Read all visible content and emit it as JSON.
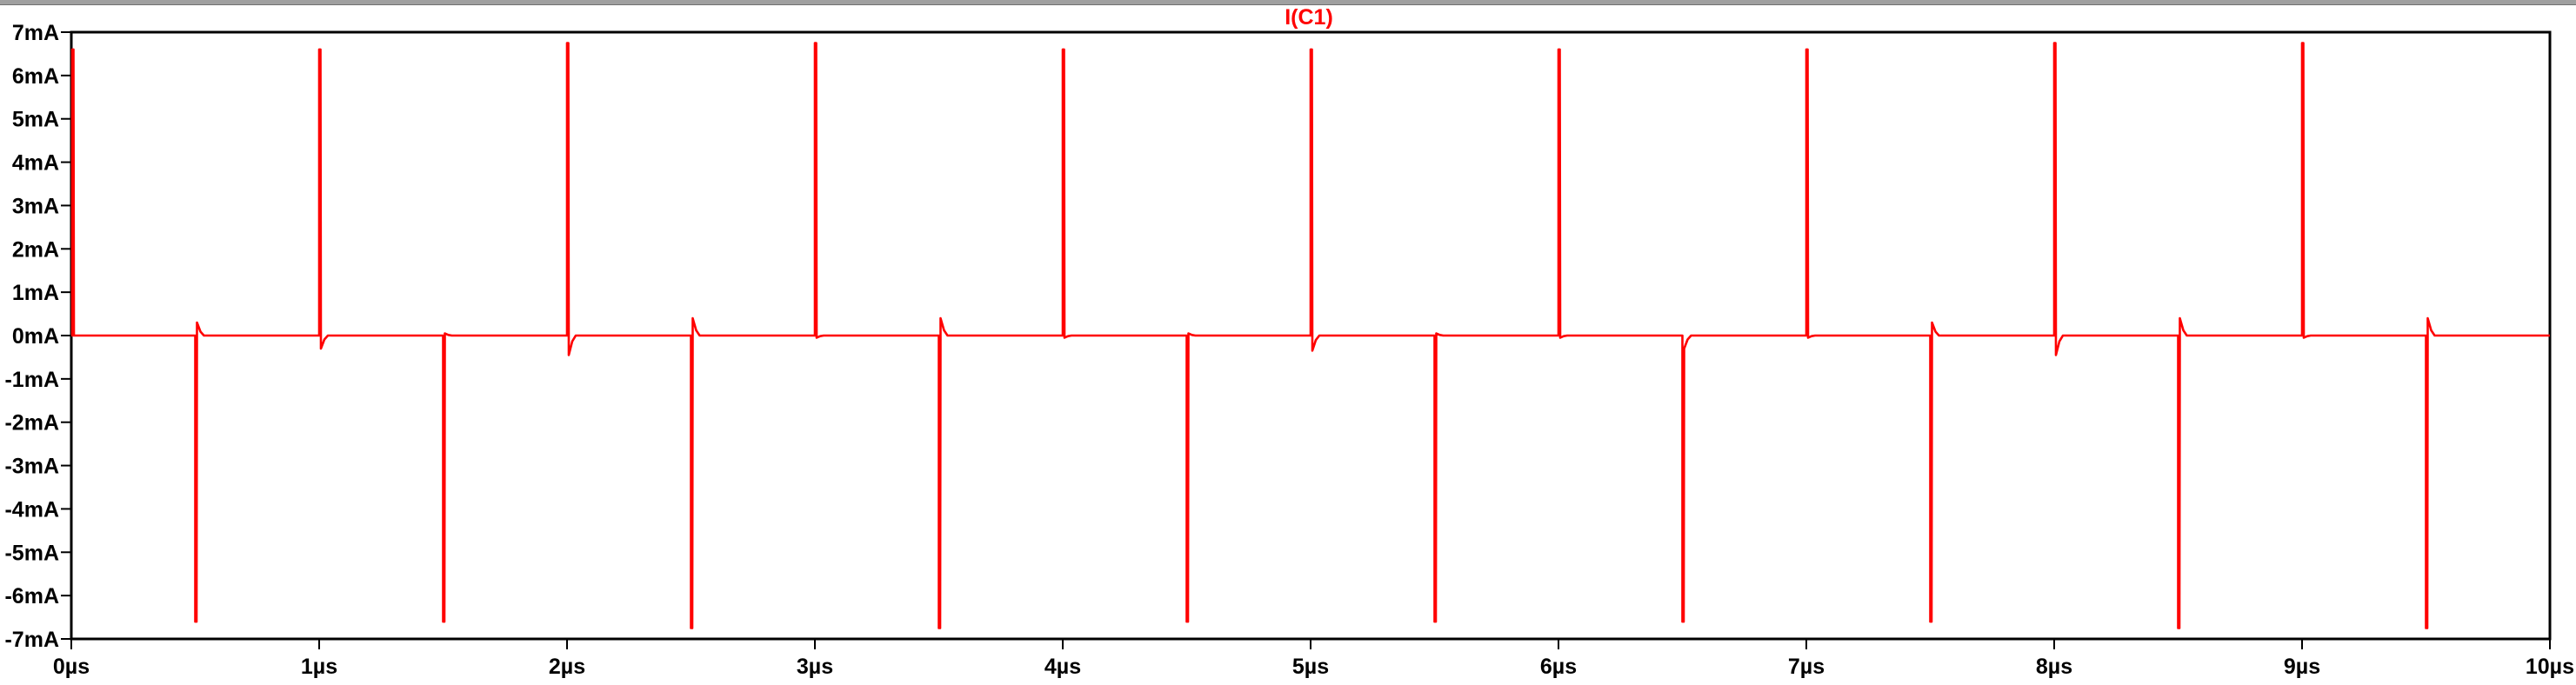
{
  "chart_data": {
    "type": "line",
    "title": "I(C1)",
    "xlabel": "",
    "ylabel": "",
    "xlim": [
      0,
      10
    ],
    "ylim": [
      -7,
      7
    ],
    "x_unit": "µs",
    "y_unit": "mA",
    "x_ticks": [
      {
        "value": 0,
        "label": "0µs"
      },
      {
        "value": 1,
        "label": "1µs"
      },
      {
        "value": 2,
        "label": "2µs"
      },
      {
        "value": 3,
        "label": "3µs"
      },
      {
        "value": 4,
        "label": "4µs"
      },
      {
        "value": 5,
        "label": "5µs"
      },
      {
        "value": 6,
        "label": "6µs"
      },
      {
        "value": 7,
        "label": "7µs"
      },
      {
        "value": 8,
        "label": "8µs"
      },
      {
        "value": 9,
        "label": "9µs"
      },
      {
        "value": 10,
        "label": "10µs"
      }
    ],
    "y_ticks": [
      {
        "value": 7,
        "label": "7mA"
      },
      {
        "value": 6,
        "label": "6mA"
      },
      {
        "value": 5,
        "label": "5mA"
      },
      {
        "value": 4,
        "label": "4mA"
      },
      {
        "value": 3,
        "label": "3mA"
      },
      {
        "value": 2,
        "label": "2mA"
      },
      {
        "value": 1,
        "label": "1mA"
      },
      {
        "value": 0,
        "label": "0mA"
      },
      {
        "value": -1,
        "label": "-1mA"
      },
      {
        "value": -2,
        "label": "-2mA"
      },
      {
        "value": -3,
        "label": "-3mA"
      },
      {
        "value": -4,
        "label": "-4mA"
      },
      {
        "value": -5,
        "label": "-5mA"
      },
      {
        "value": -6,
        "label": "-6mA"
      },
      {
        "value": -7,
        "label": "-7mA"
      }
    ],
    "grid": false,
    "series": [
      {
        "name": "I(C1)",
        "color": "#ff0000",
        "baseline": 0,
        "spikes": [
          {
            "t": 0.0,
            "peak": 6.6,
            "undershoot": 0
          },
          {
            "t": 0.5,
            "peak": -6.6,
            "overshoot": 0.3
          },
          {
            "t": 1.0,
            "peak": 6.6,
            "undershoot": -0.3
          },
          {
            "t": 1.5,
            "peak": -6.6,
            "overshoot": 0.05
          },
          {
            "t": 2.0,
            "peak": 6.75,
            "undershoot": -0.45
          },
          {
            "t": 2.5,
            "peak": -6.75,
            "overshoot": 0.4
          },
          {
            "t": 3.0,
            "peak": 6.75,
            "undershoot": -0.05
          },
          {
            "t": 3.5,
            "peak": -6.75,
            "overshoot": 0.4
          },
          {
            "t": 4.0,
            "peak": 6.6,
            "undershoot": -0.05
          },
          {
            "t": 4.5,
            "peak": -6.6,
            "overshoot": 0.05
          },
          {
            "t": 5.0,
            "peak": 6.6,
            "undershoot": -0.35
          },
          {
            "t": 5.5,
            "peak": -6.6,
            "overshoot": 0.05
          },
          {
            "t": 6.0,
            "peak": 6.6,
            "undershoot": -0.05
          },
          {
            "t": 6.5,
            "peak": -6.6,
            "overshoot": -0.3
          },
          {
            "t": 7.0,
            "peak": 6.6,
            "undershoot": -0.05
          },
          {
            "t": 7.5,
            "peak": -6.6,
            "overshoot": 0.3
          },
          {
            "t": 8.0,
            "peak": 6.75,
            "undershoot": -0.45
          },
          {
            "t": 8.5,
            "peak": -6.75,
            "overshoot": 0.4
          },
          {
            "t": 9.0,
            "peak": 6.75,
            "undershoot": -0.05
          },
          {
            "t": 9.5,
            "peak": -6.75,
            "overshoot": 0.4
          }
        ]
      }
    ]
  }
}
